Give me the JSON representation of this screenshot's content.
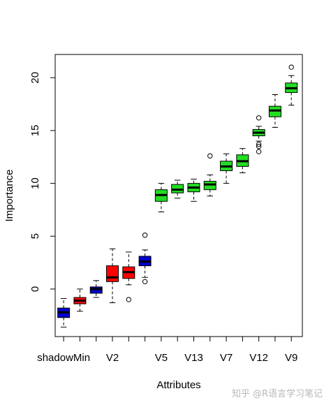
{
  "chart_data": {
    "type": "boxplot",
    "xlabel": "Attributes",
    "ylabel": "Importance",
    "ylim": [
      -4.5,
      22.2
    ],
    "yticks": [
      0,
      5,
      10,
      15,
      20
    ],
    "x_tick_labels": [
      {
        "index": 1,
        "label": "shadowMin"
      },
      {
        "index": 4,
        "label": "V2"
      },
      {
        "index": 7,
        "label": "V5"
      },
      {
        "index": 9,
        "label": "V13"
      },
      {
        "index": 11,
        "label": "V7"
      },
      {
        "index": 13,
        "label": "V12"
      },
      {
        "index": 15,
        "label": "V9"
      }
    ],
    "colors": {
      "shadow": "#0000cd",
      "rejected": "#ff0000",
      "confirmed": "#22dd22"
    },
    "boxes": [
      {
        "index": 1,
        "group": "shadow",
        "min": -3.6,
        "q1": -2.7,
        "median": -2.2,
        "q3": -1.8,
        "max": -0.9,
        "outliers": []
      },
      {
        "index": 2,
        "group": "rejected",
        "min": -2.1,
        "q1": -1.4,
        "median": -1.1,
        "q3": -0.8,
        "max": 0.0,
        "outliers": []
      },
      {
        "index": 3,
        "group": "shadow",
        "min": -0.8,
        "q1": -0.4,
        "median": 0.0,
        "q3": 0.2,
        "max": 0.8,
        "outliers": []
      },
      {
        "index": 4,
        "group": "rejected",
        "min": -1.3,
        "q1": 0.7,
        "median": 1.1,
        "q3": 2.2,
        "max": 3.8,
        "outliers": []
      },
      {
        "index": 5,
        "group": "rejected",
        "min": 0.4,
        "q1": 1.0,
        "median": 1.6,
        "q3": 2.1,
        "max": 3.5,
        "outliers": [
          -1.0
        ]
      },
      {
        "index": 6,
        "group": "shadow",
        "min": 1.1,
        "q1": 2.2,
        "median": 2.6,
        "q3": 3.1,
        "max": 3.7,
        "outliers": [
          5.1,
          0.7
        ]
      },
      {
        "index": 7,
        "group": "confirmed",
        "min": 7.3,
        "q1": 8.3,
        "median": 8.9,
        "q3": 9.4,
        "max": 10.0,
        "outliers": []
      },
      {
        "index": 8,
        "group": "confirmed",
        "min": 8.6,
        "q1": 9.1,
        "median": 9.4,
        "q3": 9.9,
        "max": 10.3,
        "outliers": []
      },
      {
        "index": 9,
        "group": "confirmed",
        "min": 8.3,
        "q1": 9.2,
        "median": 9.6,
        "q3": 10.0,
        "max": 10.4,
        "outliers": []
      },
      {
        "index": 10,
        "group": "confirmed",
        "min": 8.8,
        "q1": 9.4,
        "median": 9.9,
        "q3": 10.2,
        "max": 10.8,
        "outliers": [
          12.6
        ]
      },
      {
        "index": 11,
        "group": "confirmed",
        "min": 10.0,
        "q1": 11.2,
        "median": 11.6,
        "q3": 12.1,
        "max": 12.8,
        "outliers": []
      },
      {
        "index": 12,
        "group": "confirmed",
        "min": 11.0,
        "q1": 11.6,
        "median": 12.1,
        "q3": 12.7,
        "max": 13.3,
        "outliers": []
      },
      {
        "index": 13,
        "group": "confirmed",
        "min": 14.0,
        "q1": 14.5,
        "median": 14.8,
        "q3": 15.1,
        "max": 15.4,
        "outliers": [
          16.2,
          13.7,
          13.5,
          13.0
        ]
      },
      {
        "index": 14,
        "group": "confirmed",
        "min": 15.3,
        "q1": 16.3,
        "median": 16.9,
        "q3": 17.3,
        "max": 18.4,
        "outliers": []
      },
      {
        "index": 15,
        "group": "confirmed",
        "min": 17.4,
        "q1": 18.6,
        "median": 19.0,
        "q3": 19.5,
        "max": 20.2,
        "outliers": [
          21.0
        ]
      }
    ]
  },
  "watermark": "知乎 @R语言学习笔记"
}
